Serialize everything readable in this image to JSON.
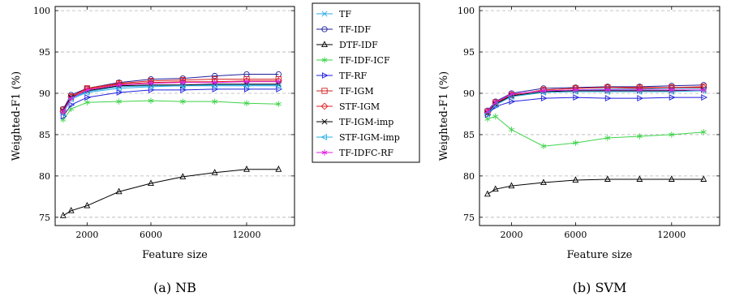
{
  "panels": [
    {
      "caption": "(a) NB"
    },
    {
      "caption": "(b) SVM"
    }
  ],
  "legend": {
    "placement": "between-panels",
    "entries": [
      {
        "name": "TF",
        "color": "#2ba7e6",
        "marker": "x"
      },
      {
        "name": "TF-IDF",
        "color": "#1f1f9c",
        "marker": "circle"
      },
      {
        "name": "DTF-IDF",
        "color": "#000000",
        "marker": "triangle-up"
      },
      {
        "name": "TF-IDF-ICF",
        "color": "#3ed34a",
        "marker": "star"
      },
      {
        "name": "TF-RF",
        "color": "#1f1fe0",
        "marker": "triangle-right"
      },
      {
        "name": "TF-IGM",
        "color": "#d41f1f",
        "marker": "square"
      },
      {
        "name": "STF-IGM",
        "color": "#e02020",
        "marker": "diamond"
      },
      {
        "name": "TF-IGM-imp",
        "color": "#000000",
        "marker": "x"
      },
      {
        "name": "STF-IGM-imp",
        "color": "#2bb0e8",
        "marker": "triangle-left"
      },
      {
        "name": "TF-IDFC-RF",
        "color": "#e020e0",
        "marker": "asterisk"
      }
    ]
  },
  "chart_data": [
    {
      "type": "line",
      "title": "",
      "caption": "(a) NB",
      "xlabel": "Feature size",
      "ylabel": "Weighted-F1 (%)",
      "xlim": [
        0,
        15000
      ],
      "ylim": [
        74,
        100.5
      ],
      "xticks": [
        2000,
        6000,
        12000
      ],
      "yticks": [
        75,
        80,
        85,
        90,
        95,
        100
      ],
      "grid": "horizontal dashed",
      "x": [
        500,
        1000,
        2000,
        4000,
        6000,
        8000,
        10000,
        12000,
        14000
      ],
      "series": [
        {
          "name": "TF",
          "values": [
            87.7,
            89.4,
            90.2,
            90.8,
            90.9,
            90.9,
            91.0,
            91.0,
            91.0
          ]
        },
        {
          "name": "TF-IDF",
          "values": [
            88.1,
            89.8,
            90.6,
            91.3,
            91.7,
            91.8,
            92.1,
            92.3,
            92.3
          ]
        },
        {
          "name": "DTF-IDF",
          "values": [
            75.2,
            75.8,
            76.4,
            78.1,
            79.1,
            79.9,
            80.4,
            80.8,
            80.8
          ]
        },
        {
          "name": "TF-IDF-ICF",
          "values": [
            86.8,
            88.1,
            88.9,
            89.0,
            89.1,
            89.0,
            89.0,
            88.8,
            88.7
          ]
        },
        {
          "name": "TF-RF",
          "values": [
            87.2,
            88.6,
            89.5,
            90.1,
            90.4,
            90.4,
            90.5,
            90.5,
            90.5
          ]
        },
        {
          "name": "TF-IGM",
          "values": [
            88.0,
            89.6,
            90.6,
            91.2,
            91.5,
            91.6,
            91.7,
            91.7,
            91.7
          ]
        },
        {
          "name": "STF-IGM",
          "values": [
            87.8,
            89.6,
            90.5,
            91.1,
            91.3,
            91.4,
            91.4,
            91.5,
            91.5
          ]
        },
        {
          "name": "TF-IGM-imp",
          "values": [
            87.9,
            89.5,
            90.3,
            90.9,
            91.0,
            91.0,
            91.1,
            91.1,
            91.1
          ]
        },
        {
          "name": "STF-IGM-imp",
          "values": [
            87.6,
            89.3,
            90.1,
            90.6,
            90.8,
            90.9,
            90.9,
            90.9,
            90.9
          ]
        },
        {
          "name": "TF-IDFC-RF",
          "values": [
            87.8,
            89.4,
            90.4,
            91.0,
            91.2,
            91.3,
            91.3,
            91.4,
            91.4
          ]
        }
      ]
    },
    {
      "type": "line",
      "title": "",
      "caption": "(b) SVM",
      "xlabel": "Feature size",
      "ylabel": "Weighted-F1 (%)",
      "xlim": [
        0,
        15000
      ],
      "ylim": [
        74,
        100.5
      ],
      "xticks": [
        2000,
        6000,
        12000
      ],
      "yticks": [
        75,
        80,
        85,
        90,
        95,
        100
      ],
      "grid": "horizontal dashed",
      "x": [
        500,
        1000,
        2000,
        4000,
        6000,
        8000,
        10000,
        12000,
        14000
      ],
      "series": [
        {
          "name": "TF",
          "values": [
            87.6,
            88.6,
            89.6,
            90.2,
            90.4,
            90.5,
            90.5,
            90.6,
            90.6
          ]
        },
        {
          "name": "TF-IDF",
          "values": [
            87.9,
            89.0,
            90.0,
            90.6,
            90.7,
            90.8,
            90.8,
            90.9,
            91.0
          ]
        },
        {
          "name": "DTF-IDF",
          "values": [
            77.8,
            78.4,
            78.8,
            79.2,
            79.5,
            79.6,
            79.6,
            79.6,
            79.6
          ]
        },
        {
          "name": "TF-IDF-ICF",
          "values": [
            86.9,
            87.2,
            85.6,
            83.6,
            84.0,
            84.6,
            84.8,
            85.0,
            85.3
          ]
        },
        {
          "name": "TF-RF",
          "values": [
            87.4,
            88.4,
            89.0,
            89.4,
            89.5,
            89.4,
            89.4,
            89.5,
            89.5
          ]
        },
        {
          "name": "TF-IGM",
          "values": [
            87.8,
            88.9,
            89.8,
            90.4,
            90.6,
            90.7,
            90.7,
            90.7,
            90.8
          ]
        },
        {
          "name": "STF-IGM",
          "values": [
            87.7,
            88.8,
            89.8,
            90.4,
            90.6,
            90.7,
            90.6,
            90.7,
            90.7
          ]
        },
        {
          "name": "TF-IGM-imp",
          "values": [
            87.6,
            88.7,
            89.7,
            90.2,
            90.3,
            90.3,
            90.3,
            90.3,
            90.4
          ]
        },
        {
          "name": "STF-IGM-imp",
          "values": [
            87.5,
            88.6,
            89.6,
            90.1,
            90.2,
            90.2,
            90.2,
            90.2,
            90.3
          ]
        },
        {
          "name": "TF-IDFC-RF",
          "values": [
            87.8,
            88.9,
            89.9,
            90.3,
            90.4,
            90.4,
            90.4,
            90.4,
            90.4
          ]
        }
      ]
    }
  ]
}
